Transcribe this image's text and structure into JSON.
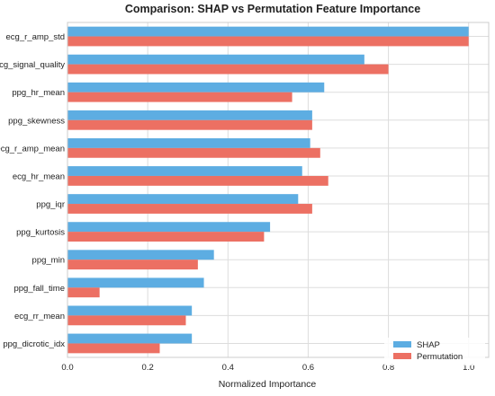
{
  "chart_data": {
    "type": "bar",
    "orientation": "horizontal",
    "title": "Comparison: SHAP vs Permutation Feature Importance",
    "xlabel": "Normalized Importance",
    "ylabel": "",
    "xlim": [
      0,
      1.05
    ],
    "xticks": [
      0.0,
      0.2,
      0.4,
      0.6,
      0.8,
      1.0
    ],
    "xtick_labels": [
      "0.0",
      "0.2",
      "0.4",
      "0.6",
      "0.8",
      "1.0"
    ],
    "grid": true,
    "legend_position": "bottom-right",
    "categories": [
      "ecg_r_amp_std",
      "ecg_signal_quality",
      "ppg_hr_mean",
      "ppg_skewness",
      "ecg_r_amp_mean",
      "ecg_hr_mean",
      "ppg_iqr",
      "ppg_kurtosis",
      "ppg_min",
      "ppg_fall_time",
      "ecg_rr_mean",
      "ppg_dicrotic_idx"
    ],
    "series": [
      {
        "name": "SHAP",
        "color": "#5dade2",
        "values": [
          1.0,
          0.74,
          0.64,
          0.61,
          0.605,
          0.585,
          0.575,
          0.505,
          0.365,
          0.34,
          0.31,
          0.31
        ]
      },
      {
        "name": "Permutation",
        "color": "#ec7063",
        "values": [
          1.0,
          0.8,
          0.56,
          0.61,
          0.63,
          0.65,
          0.61,
          0.49,
          0.325,
          0.08,
          0.295,
          0.23
        ]
      }
    ]
  }
}
